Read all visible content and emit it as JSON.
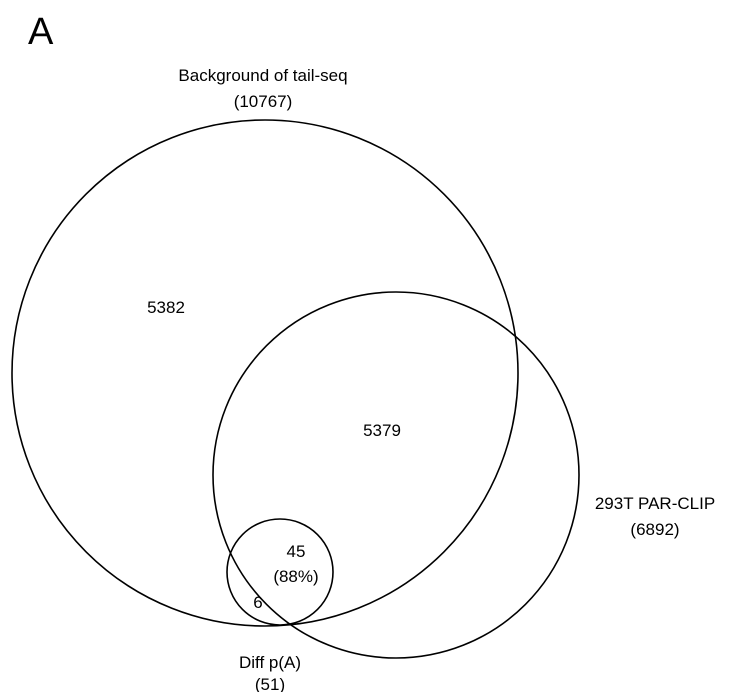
{
  "panel_label": "A",
  "sets": {
    "background": {
      "name": "Background of tail-seq",
      "count": "(10767)"
    },
    "parclip": {
      "name": "293T PAR-CLIP",
      "count": "(6892)"
    },
    "diff": {
      "name": "Diff p(A)",
      "count": "(51)"
    }
  },
  "regions": {
    "background_only": "5382",
    "background_and_parclip": "5379",
    "diff_in_parclip": "45",
    "diff_in_parclip_pct": "(88%)",
    "diff_background_only": "6"
  }
}
